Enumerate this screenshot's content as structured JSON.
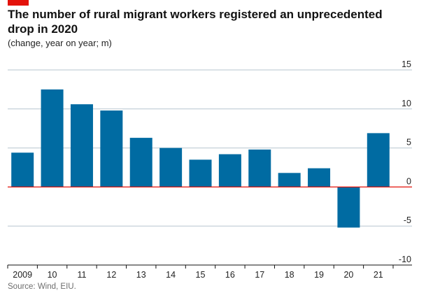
{
  "header": {
    "title": "The number of rural migrant workers registered an unprecedented drop in 2020",
    "subtitle": "(change, year on year; m)"
  },
  "footer": {
    "source": "Source: Wind, EIU."
  },
  "colors": {
    "accent": "#e3120b",
    "bar": "#006ba2",
    "zero_line": "#e3120b",
    "grid": "#b7c6cf",
    "axis": "#121212"
  },
  "chart_data": {
    "type": "bar",
    "categories": [
      "2009",
      "10",
      "11",
      "12",
      "13",
      "14",
      "15",
      "16",
      "17",
      "18",
      "19",
      "20",
      "21"
    ],
    "values": [
      4.4,
      12.5,
      10.6,
      9.8,
      6.3,
      5.0,
      3.5,
      4.2,
      4.8,
      1.8,
      2.4,
      -5.2,
      6.9
    ],
    "ylim": [
      -10,
      15
    ],
    "yticks": [
      15,
      10,
      5,
      0,
      -5,
      -10
    ],
    "ytick_labels": [
      "15",
      "10",
      "5",
      "0",
      "-5",
      "-10"
    ],
    "grid": true,
    "title": "The number of rural migrant workers registered an unprecedented drop in 2020",
    "subtitle": "(change, year on year; m)",
    "xlabel": "",
    "ylabel": ""
  }
}
